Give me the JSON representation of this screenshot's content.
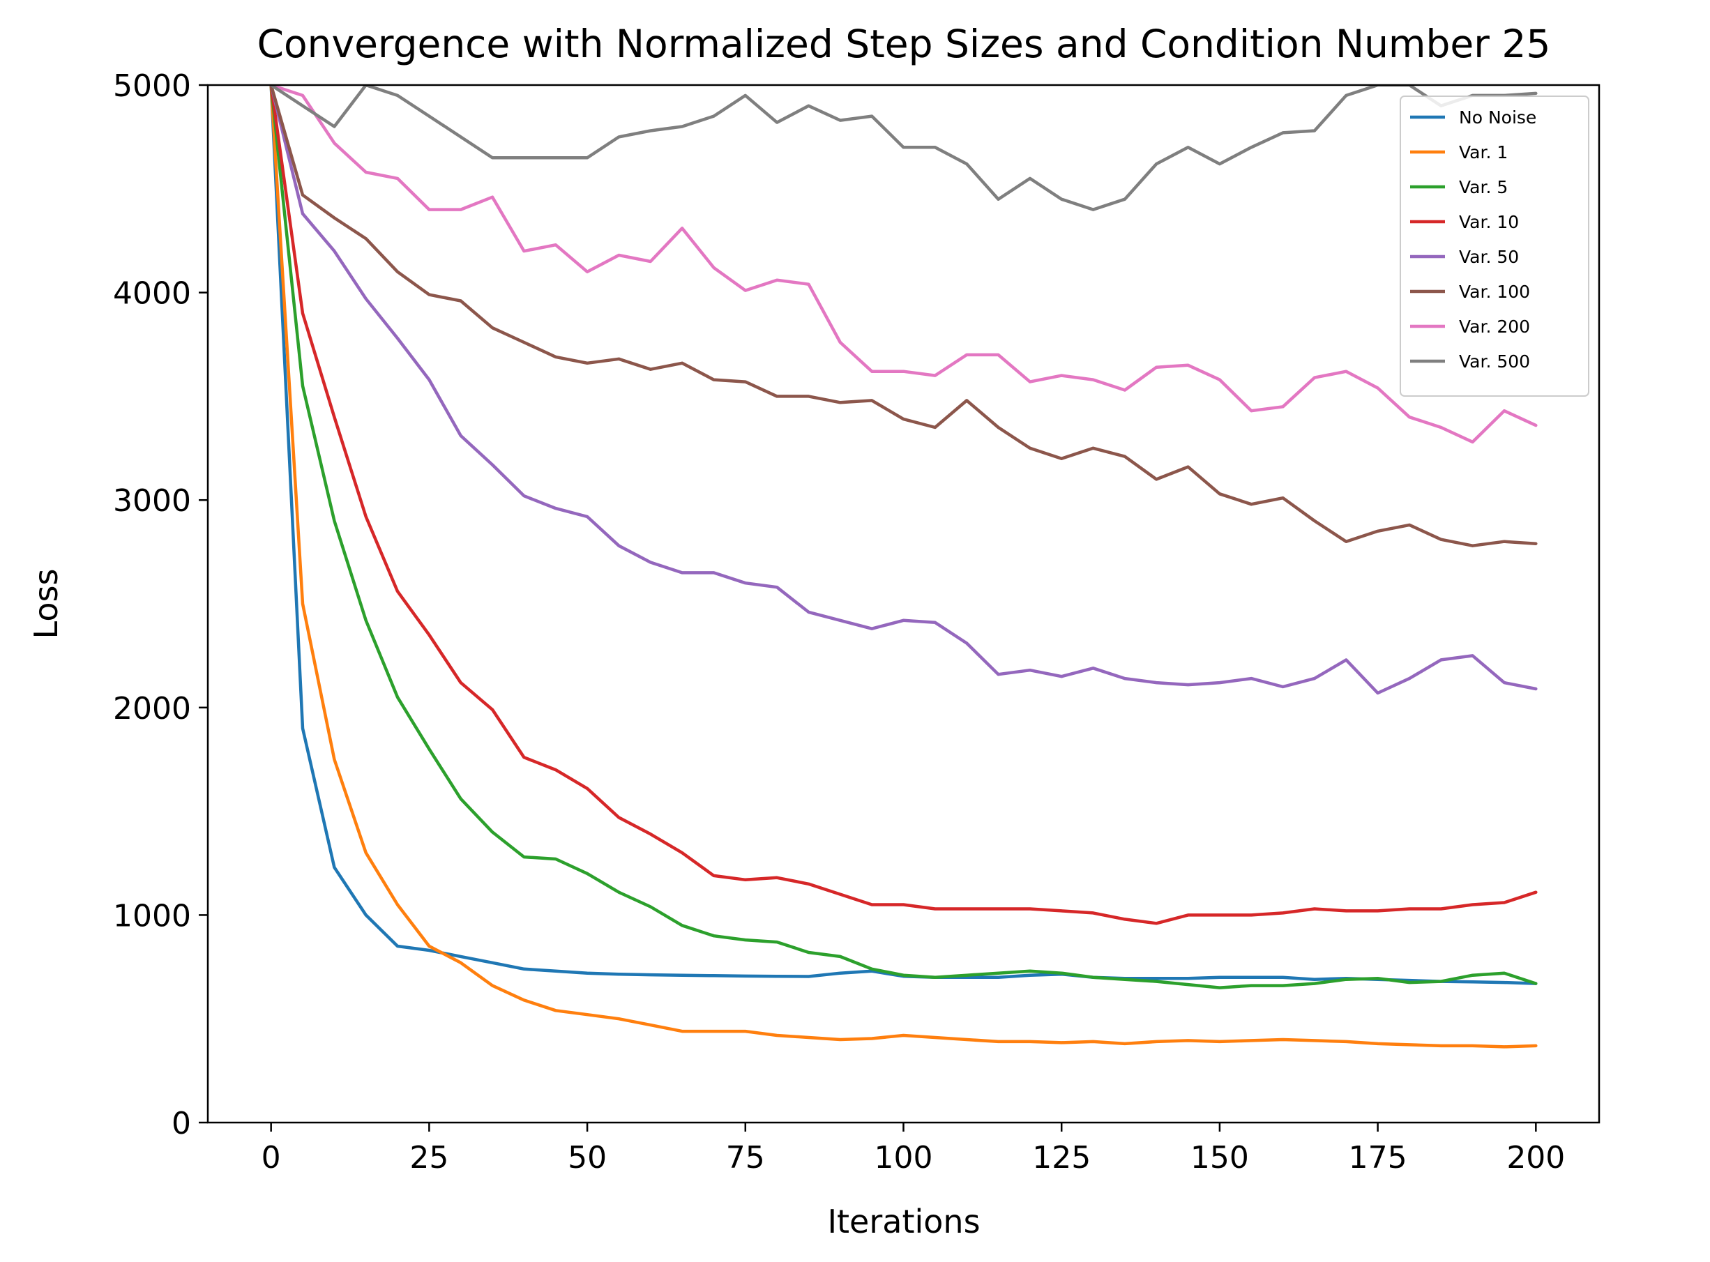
{
  "chart_data": {
    "type": "line",
    "title": "Convergence with Normalized Step Sizes and Condition Number 25",
    "xlabel": "Iterations",
    "ylabel": "Loss",
    "xlim": [
      -10,
      210
    ],
    "ylim": [
      0,
      5000
    ],
    "xticks": [
      0,
      25,
      50,
      75,
      100,
      125,
      150,
      175,
      200
    ],
    "yticks": [
      0,
      1000,
      2000,
      3000,
      4000,
      5000
    ],
    "xtick_labels": [
      "0",
      "25",
      "50",
      "75",
      "100",
      "125",
      "150",
      "175",
      "200"
    ],
    "ytick_labels": [
      "0",
      "1000",
      "2000",
      "3000",
      "4000",
      "5000"
    ],
    "grid": false,
    "legend_position": "upper-right",
    "x": [
      0,
      5,
      10,
      15,
      20,
      25,
      30,
      35,
      40,
      45,
      50,
      55,
      60,
      65,
      70,
      75,
      80,
      85,
      90,
      95,
      100,
      105,
      110,
      115,
      120,
      125,
      130,
      135,
      140,
      145,
      150,
      155,
      160,
      165,
      170,
      175,
      180,
      185,
      190,
      195,
      200
    ],
    "series": [
      {
        "name": "No Noise",
        "color": "#1f77b4",
        "values": [
          5000,
          1900,
          1230,
          1000,
          850,
          830,
          800,
          770,
          740,
          730,
          720,
          715,
          712,
          710,
          708,
          706,
          705,
          704,
          720,
          730,
          705,
          700,
          700,
          700,
          710,
          715,
          700,
          695,
          695,
          695,
          700,
          700,
          700,
          690,
          695,
          690,
          685,
          680,
          678,
          675,
          670
        ]
      },
      {
        "name": "Var. 1",
        "color": "#ff7f0e",
        "values": [
          5000,
          2500,
          1750,
          1300,
          1050,
          850,
          770,
          660,
          590,
          540,
          520,
          500,
          470,
          440,
          440,
          440,
          420,
          410,
          400,
          405,
          420,
          410,
          400,
          390,
          390,
          385,
          390,
          380,
          390,
          395,
          390,
          395,
          400,
          395,
          390,
          380,
          375,
          370,
          370,
          365,
          370
        ]
      },
      {
        "name": "Var. 5",
        "color": "#2ca02c",
        "values": [
          5000,
          3550,
          2900,
          2420,
          2050,
          1800,
          1560,
          1400,
          1280,
          1270,
          1200,
          1110,
          1040,
          950,
          900,
          880,
          870,
          820,
          800,
          740,
          710,
          700,
          710,
          720,
          730,
          720,
          700,
          690,
          680,
          665,
          650,
          660,
          660,
          670,
          690,
          695,
          675,
          680,
          710,
          720,
          670
        ]
      },
      {
        "name": "Var. 10",
        "color": "#d62728",
        "values": [
          5000,
          3900,
          3400,
          2920,
          2560,
          2350,
          2120,
          1990,
          1760,
          1700,
          1610,
          1470,
          1390,
          1300,
          1190,
          1170,
          1180,
          1150,
          1100,
          1050,
          1050,
          1030,
          1030,
          1030,
          1030,
          1020,
          1010,
          980,
          960,
          1000,
          1000,
          1000,
          1010,
          1030,
          1020,
          1020,
          1030,
          1030,
          1050,
          1060,
          1110
        ]
      },
      {
        "name": "Var. 50",
        "color": "#9467bd",
        "values": [
          5000,
          4380,
          4200,
          3970,
          3780,
          3580,
          3310,
          3170,
          3020,
          2960,
          2920,
          2780,
          2700,
          2650,
          2650,
          2600,
          2580,
          2460,
          2420,
          2380,
          2420,
          2410,
          2310,
          2160,
          2180,
          2150,
          2190,
          2140,
          2120,
          2110,
          2120,
          2140,
          2100,
          2140,
          2230,
          2070,
          2140,
          2230,
          2250,
          2120,
          2090
        ]
      },
      {
        "name": "Var. 100",
        "color": "#8c564b",
        "values": [
          5000,
          4470,
          4360,
          4260,
          4100,
          3990,
          3960,
          3830,
          3760,
          3690,
          3660,
          3680,
          3630,
          3660,
          3580,
          3570,
          3500,
          3500,
          3470,
          3480,
          3390,
          3350,
          3480,
          3350,
          3250,
          3200,
          3250,
          3210,
          3100,
          3160,
          3030,
          2980,
          3010,
          2900,
          2800,
          2850,
          2880,
          2810,
          2780,
          2800,
          2790
        ]
      },
      {
        "name": "Var. 200",
        "color": "#e377c2",
        "values": [
          5000,
          4950,
          4720,
          4580,
          4550,
          4400,
          4400,
          4460,
          4200,
          4230,
          4100,
          4180,
          4150,
          4310,
          4120,
          4010,
          4060,
          4040,
          3760,
          3620,
          3620,
          3600,
          3700,
          3700,
          3570,
          3600,
          3580,
          3530,
          3640,
          3650,
          3580,
          3430,
          3450,
          3590,
          3620,
          3540,
          3400,
          3350,
          3280,
          3430,
          3360
        ]
      },
      {
        "name": "Var. 500",
        "color": "#7f7f7f",
        "values": [
          5000,
          4900,
          4800,
          5000,
          4950,
          4850,
          4750,
          4650,
          4650,
          4650,
          4650,
          4750,
          4780,
          4800,
          4850,
          4950,
          4820,
          4900,
          4830,
          4850,
          4700,
          4700,
          4620,
          4450,
          4550,
          4450,
          4400,
          4450,
          4620,
          4700,
          4620,
          4700,
          4770,
          4780,
          4950,
          5000,
          5000,
          4900,
          4950,
          4950,
          4960
        ]
      }
    ]
  }
}
